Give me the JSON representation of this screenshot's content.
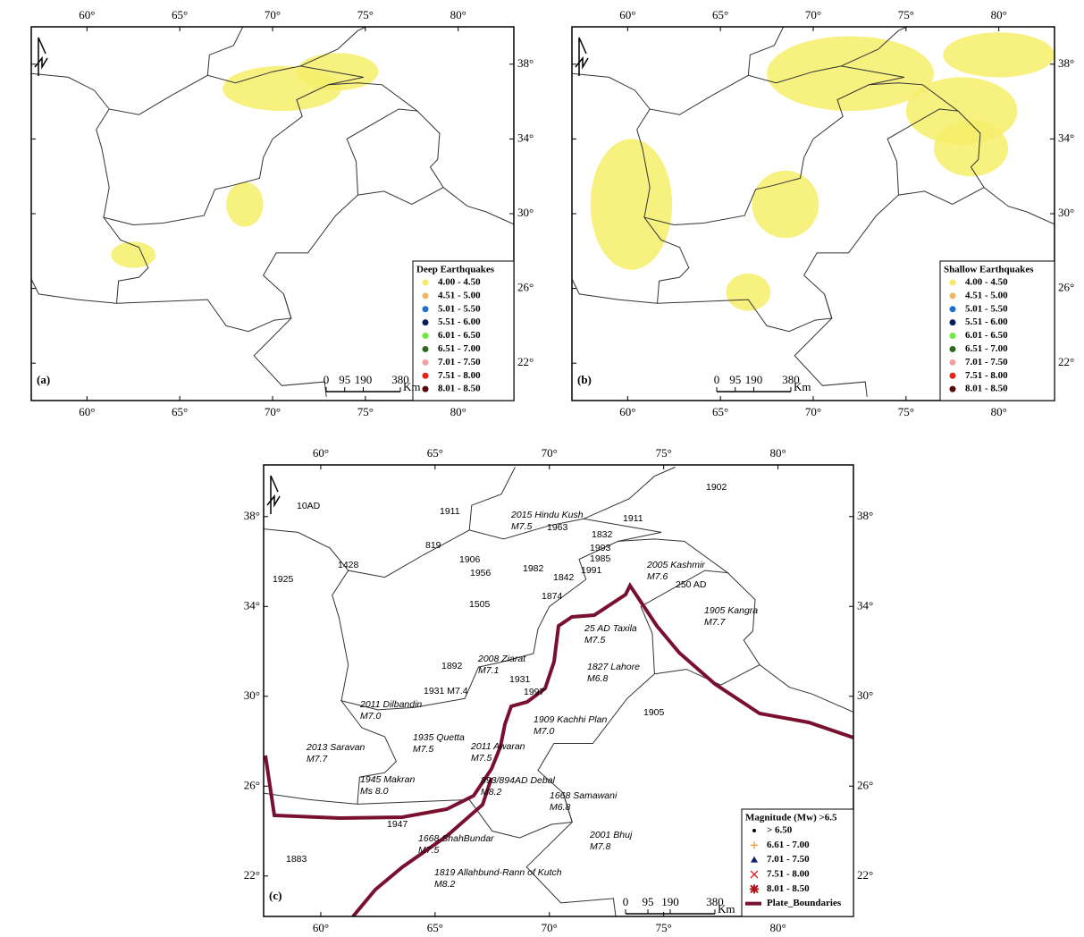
{
  "panels": [
    {
      "label": "(a)",
      "xlim": [
        57,
        83
      ],
      "ylim": [
        20,
        40
      ],
      "xticks": [
        {
          "value": 60,
          "label": "60°"
        },
        {
          "value": 65,
          "label": "65°"
        },
        {
          "value": 70,
          "label": "70°"
        },
        {
          "value": 75,
          "label": "75°"
        },
        {
          "value": 80,
          "label": "80°"
        }
      ],
      "yticks": [
        {
          "value": 22,
          "label": "22°"
        },
        {
          "value": 26,
          "label": "26°"
        },
        {
          "value": 30,
          "label": "30°"
        },
        {
          "value": 34,
          "label": "34°"
        },
        {
          "value": 38,
          "label": "38°"
        }
      ],
      "legend": {
        "title": "Deep Earthquakes",
        "items": [
          {
            "label": "4.00 - 4.50",
            "color": "#f3ea6a"
          },
          {
            "label": "4.51 - 5.00",
            "color": "#efb860"
          },
          {
            "label": "5.01 - 5.50",
            "color": "#1f6fd1"
          },
          {
            "label": "5.51 - 6.00",
            "color": "#0b1f5c"
          },
          {
            "label": "6.01 - 6.50",
            "color": "#6ee83a"
          },
          {
            "label": "6.51 - 7.00",
            "color": "#2b6a1a"
          },
          {
            "label": "7.01 - 7.50",
            "color": "#f4a0a0"
          },
          {
            "label": "7.51 - 8.00",
            "color": "#e8201a"
          },
          {
            "label": "8.01 - 8.50",
            "color": "#5a0a0a"
          }
        ]
      },
      "scale_bar": {
        "ticks": [
          0,
          95,
          190,
          380
        ],
        "unit": "Km"
      }
    },
    {
      "label": "(b)",
      "xlim": [
        57,
        83
      ],
      "ylim": [
        20,
        40
      ],
      "xticks": [
        {
          "value": 60,
          "label": "60°"
        },
        {
          "value": 65,
          "label": "65°"
        },
        {
          "value": 70,
          "label": "70°"
        },
        {
          "value": 75,
          "label": "75°"
        },
        {
          "value": 80,
          "label": "80°"
        }
      ],
      "yticks": [
        {
          "value": 22,
          "label": "22°"
        },
        {
          "value": 26,
          "label": "26°"
        },
        {
          "value": 30,
          "label": "30°"
        },
        {
          "value": 34,
          "label": "34°"
        },
        {
          "value": 38,
          "label": "38°"
        }
      ],
      "legend": {
        "title": "Shallow Earthquakes",
        "items": [
          {
            "label": "4.00 - 4.50",
            "color": "#f3ea6a"
          },
          {
            "label": "4.51 - 5.00",
            "color": "#efb860"
          },
          {
            "label": "5.01 - 5.50",
            "color": "#1f6fd1"
          },
          {
            "label": "5.51 - 6.00",
            "color": "#0b1f5c"
          },
          {
            "label": "6.01 - 6.50",
            "color": "#6ee83a"
          },
          {
            "label": "6.51 - 7.00",
            "color": "#2b6a1a"
          },
          {
            "label": "7.01 - 7.50",
            "color": "#f4a0a0"
          },
          {
            "label": "7.51 - 8.00",
            "color": "#e8201a"
          },
          {
            "label": "8.01 - 8.50",
            "color": "#5a0a0a"
          }
        ]
      },
      "scale_bar": {
        "ticks": [
          0,
          95,
          190,
          380
        ],
        "unit": "Km"
      }
    },
    {
      "label": "(c)",
      "xlim": [
        57.5,
        83.3
      ],
      "ylim": [
        20.2,
        40.3
      ],
      "xticks": [
        {
          "value": 60,
          "label": "60°"
        },
        {
          "value": 65,
          "label": "65°"
        },
        {
          "value": 70,
          "label": "70°"
        },
        {
          "value": 75,
          "label": "75°"
        },
        {
          "value": 80,
          "label": "80°"
        }
      ],
      "yticks": [
        {
          "value": 22,
          "label": "22°"
        },
        {
          "value": 26,
          "label": "26°"
        },
        {
          "value": 30,
          "label": "30°"
        },
        {
          "value": 34,
          "label": "34°"
        },
        {
          "value": 38,
          "label": "38°"
        }
      ],
      "legend": {
        "title": "Magnitude (Mw) >6.5",
        "items": [
          {
            "label": "> 6.50",
            "marker": "dot",
            "color": "#000000"
          },
          {
            "label": "6.61 - 7.00",
            "marker": "plus",
            "color": "#efa640"
          },
          {
            "label": "7.01 - 7.50",
            "marker": "triangle",
            "color": "#0b1f6c"
          },
          {
            "label": "7.51 - 8.00",
            "marker": "cross",
            "color": "#d9231f"
          },
          {
            "label": "8.01 - 8.50",
            "marker": "star",
            "color": "#b3141a"
          },
          {
            "label": "Plate_Boundaries",
            "marker": "line",
            "color": "#7a1030"
          }
        ]
      },
      "scale_bar": {
        "ticks": [
          0,
          95,
          190,
          380
        ],
        "unit": "Km"
      },
      "annotations": [
        [
          "10AD"
        ],
        [
          "1911"
        ],
        [
          "2015 Hindu Kush",
          "M7.5"
        ],
        [
          "1963"
        ],
        [
          "1832"
        ],
        [
          "1911"
        ],
        [
          "819"
        ],
        [
          "1993"
        ],
        [
          "1985"
        ],
        [
          "1906"
        ],
        [
          "1982"
        ],
        [
          "1991"
        ],
        [
          "1428"
        ],
        [
          "1956"
        ],
        [
          "1842"
        ],
        [
          "2005 Kashmir",
          "M7.6"
        ],
        [
          "1925"
        ],
        [
          "250 AD"
        ],
        [
          "1874"
        ],
        [
          "1505"
        ],
        [
          "1905 Kangra",
          "M7.7"
        ],
        [
          "25 AD Taxila",
          "M7.5"
        ],
        [
          "2008 Ziarat",
          "M7.1"
        ],
        [
          "1892"
        ],
        [
          "1827 Lahore",
          "M6.8"
        ],
        [
          "1931"
        ],
        [
          "1931 M7.4"
        ],
        [
          "1997"
        ],
        [
          "2011 Dilbandin",
          "M7.0"
        ],
        [
          "1909 Kachhi Plan",
          "M7.0"
        ],
        [
          "1905"
        ],
        [
          "1935 Quetta",
          "M7.5"
        ],
        [
          "2011 Awaran",
          "M7.5"
        ],
        [
          "2013 Saravan",
          "M7.7"
        ],
        [
          "1945 Makran",
          "Ms 8.0"
        ],
        [
          "893/894AD Debal",
          "M8.2"
        ],
        [
          "1668 Samawani",
          "M6.8"
        ],
        [
          "1947"
        ],
        [
          "1668 ShahBundar",
          "M7.5"
        ],
        [
          "2001 Bhuj",
          "M7.8"
        ],
        [
          "1819 Allahbund-Rann of Kutch",
          "M8.2"
        ],
        [
          "1883"
        ],
        [
          "1902"
        ]
      ]
    }
  ]
}
